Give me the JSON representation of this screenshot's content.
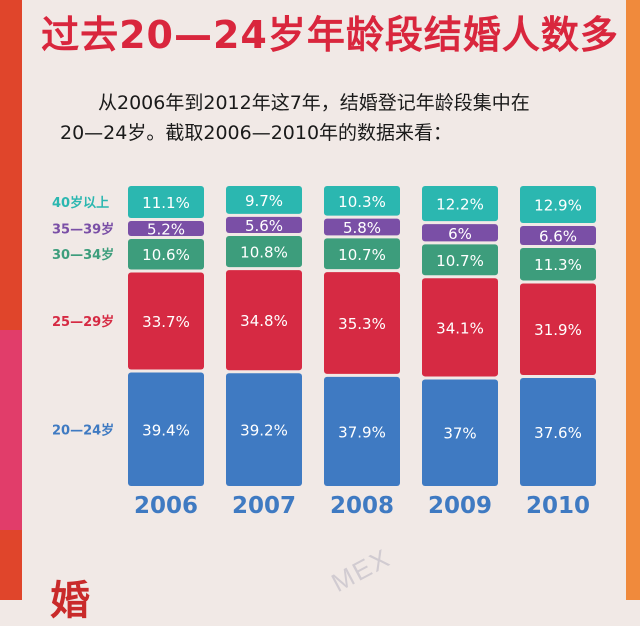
{
  "title": "过去20—24岁年龄段结婚人数多",
  "intro": {
    "line1": "从2006年到2012年这7年，结婚登记年龄段集中在",
    "line2": "20—24岁。截取2006—2010年的数据来看："
  },
  "footer": "婚",
  "watermark": "MEX",
  "colors": {
    "40岁以上": "#2bb7b0",
    "35—39岁": "#7a4fa6",
    "30—34岁": "#3d9d7c",
    "25—29岁": "#d62a43",
    "20—24岁": "#3f7ac2",
    "year_label": "#3f7ac2",
    "value_label": "#ffffff"
  },
  "chart_data": {
    "type": "bar",
    "stacked": true,
    "categories": [
      "2006",
      "2007",
      "2008",
      "2009",
      "2010"
    ],
    "series": [
      {
        "name": "20—24岁",
        "values": [
          39.4,
          39.2,
          37.9,
          37,
          37.6
        ],
        "labels": [
          "39.4%",
          "39.2%",
          "37.9%",
          "37%",
          "37.6%"
        ]
      },
      {
        "name": "25—29岁",
        "values": [
          33.7,
          34.8,
          35.3,
          34.1,
          31.9
        ],
        "labels": [
          "33.7%",
          "34.8%",
          "35.3%",
          "34.1%",
          "31.9%"
        ]
      },
      {
        "name": "30—34岁",
        "values": [
          10.6,
          10.8,
          10.7,
          10.7,
          11.3
        ],
        "labels": [
          "10.6%",
          "10.8%",
          "10.7%",
          "10.7%",
          "11.3%"
        ]
      },
      {
        "name": "35—39岁",
        "values": [
          5.2,
          5.6,
          5.8,
          6,
          6.6
        ],
        "labels": [
          "5.2%",
          "5.6%",
          "5.8%",
          "6%",
          "6.6%"
        ]
      },
      {
        "name": "40岁以上",
        "values": [
          11.1,
          9.7,
          10.3,
          12.2,
          12.9
        ],
        "labels": [
          "11.1%",
          "9.7%",
          "10.3%",
          "12.2%",
          "12.9%"
        ]
      }
    ],
    "legend_placement": "left",
    "grid": false
  }
}
